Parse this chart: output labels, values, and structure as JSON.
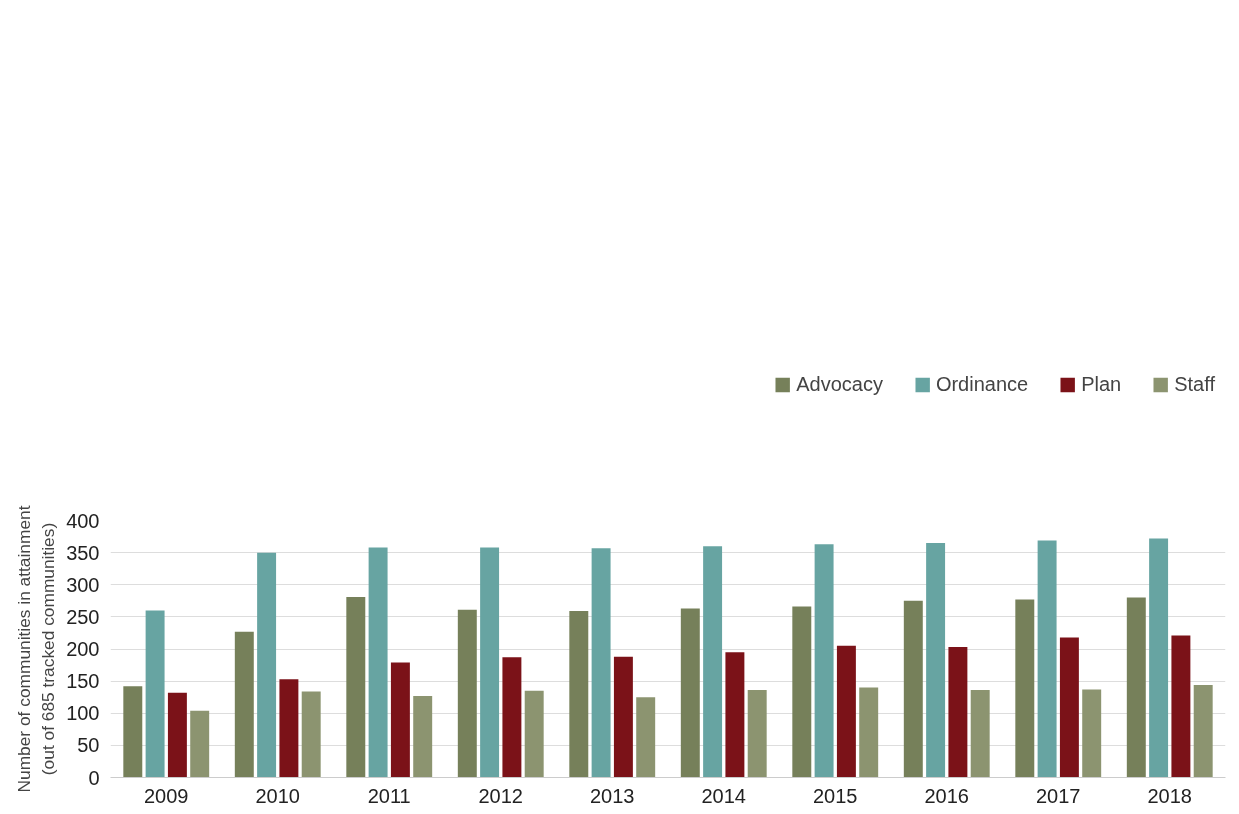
{
  "chart_data": {
    "type": "bar",
    "ylabel": "Number of communities in attainment\n(out of 685 tracked communities)",
    "categories": [
      "2009",
      "2010",
      "2011",
      "2012",
      "2013",
      "2014",
      "2015",
      "2016",
      "2017",
      "2018"
    ],
    "series": [
      {
        "name": "Advocacy",
        "color": "#76805a",
        "values": [
          142,
          227,
          281,
          261,
          259,
          263,
          266,
          275,
          277,
          280
        ]
      },
      {
        "name": "Ordinance",
        "color": "#67a4a2",
        "values": [
          260,
          350,
          358,
          358,
          357,
          360,
          363,
          365,
          369,
          372
        ]
      },
      {
        "name": "Plan",
        "color": "#7b1218",
        "values": [
          132,
          153,
          179,
          187,
          188,
          195,
          205,
          203,
          218,
          221
        ]
      },
      {
        "name": "Staff",
        "color": "#8c9470",
        "values": [
          104,
          134,
          127,
          135,
          125,
          136,
          140,
          136,
          137,
          144
        ]
      }
    ],
    "ylim": [
      0,
      400
    ],
    "yticks": [
      0,
      50,
      100,
      150,
      200,
      250,
      300,
      350,
      400
    ],
    "grid": "y",
    "legend": "top right"
  }
}
